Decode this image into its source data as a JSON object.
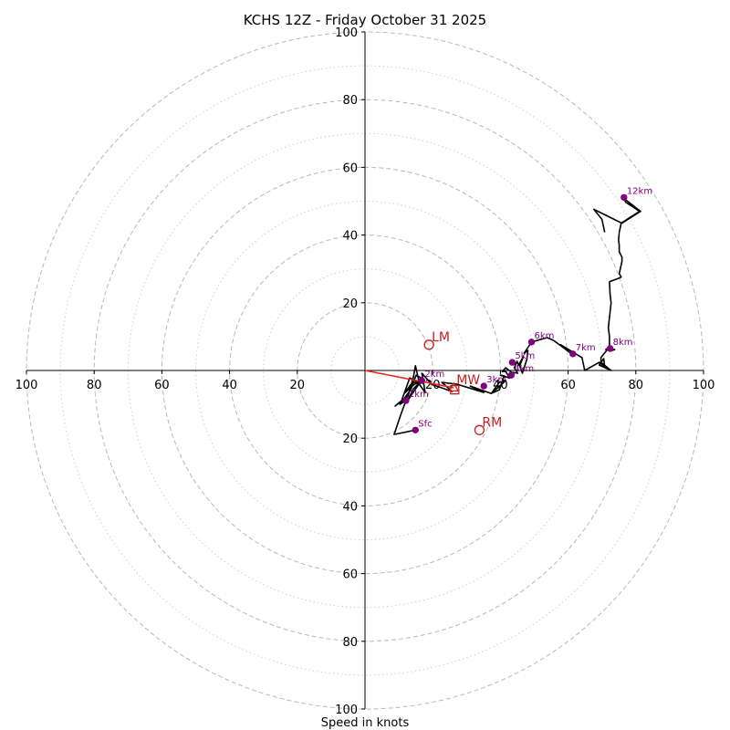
{
  "chart_data": {
    "type": "scatter",
    "subtype": "hodograph",
    "title": "KCHS 12Z - Friday October 31 2025",
    "xlabel": "Speed in knots",
    "ylabel": "",
    "xlim": [
      -100,
      100
    ],
    "ylim": [
      -100,
      100
    ],
    "rings": [
      20,
      40,
      60,
      80,
      100
    ],
    "minor_rings": [
      10,
      30,
      50,
      70,
      90
    ],
    "x_ticks": [
      {
        "value": -100,
        "label": "100"
      },
      {
        "value": -80,
        "label": "80"
      },
      {
        "value": -60,
        "label": "60"
      },
      {
        "value": -40,
        "label": "40"
      },
      {
        "value": -20,
        "label": "20"
      },
      {
        "value": 20,
        "label": "20"
      },
      {
        "value": 40,
        "label": "40"
      },
      {
        "value": 60,
        "label": "60"
      },
      {
        "value": 80,
        "label": "80"
      },
      {
        "value": 100,
        "label": "100"
      }
    ],
    "y_ticks": [
      {
        "value": 100,
        "label": "100"
      },
      {
        "value": 80,
        "label": "80"
      },
      {
        "value": 60,
        "label": "60"
      },
      {
        "value": 40,
        "label": "40"
      },
      {
        "value": 20,
        "label": "20"
      },
      {
        "value": -20,
        "label": "20"
      },
      {
        "value": -40,
        "label": "40"
      },
      {
        "value": -60,
        "label": "60"
      },
      {
        "value": -80,
        "label": "80"
      },
      {
        "value": -100,
        "label": "100"
      }
    ],
    "trace": [
      [
        14.9,
        -17.6
      ],
      [
        8.6,
        -18.9
      ],
      [
        10.5,
        -13.2
      ],
      [
        12.1,
        -8.9
      ],
      [
        10.3,
        -10.0
      ],
      [
        13.5,
        -5.7
      ],
      [
        15.1,
        -1.4
      ],
      [
        17.0,
        -2.4
      ],
      [
        12.4,
        -9.2
      ],
      [
        14.3,
        -5.4
      ],
      [
        16.8,
        -3.0
      ],
      [
        13.8,
        -3.8
      ],
      [
        11.6,
        -6.8
      ],
      [
        14.6,
        -4.1
      ],
      [
        15.9,
        -3.5
      ],
      [
        13.2,
        -2.2
      ],
      [
        10.8,
        -8.9
      ],
      [
        8.9,
        -10.5
      ],
      [
        12.7,
        -7.6
      ],
      [
        14.3,
        -1.9
      ],
      [
        14.9,
        1.4
      ],
      [
        16.2,
        -4.3
      ],
      [
        17.8,
        -6.5
      ],
      [
        16.8,
        -0.8
      ],
      [
        19.7,
        -4.1
      ],
      [
        25.7,
        -6.2
      ],
      [
        22.7,
        -3.5
      ],
      [
        27.3,
        -4.1
      ],
      [
        35.1,
        -6.5
      ],
      [
        31.1,
        -4.6
      ],
      [
        37.3,
        -6.8
      ],
      [
        41.6,
        -3.0
      ],
      [
        39.7,
        -3.5
      ],
      [
        37.3,
        -6.8
      ],
      [
        39.7,
        -5.7
      ],
      [
        41.1,
        -1.6
      ],
      [
        40.0,
        -1.4
      ],
      [
        42.7,
        -2.2
      ],
      [
        41.6,
        -0.3
      ],
      [
        40.5,
        -0.3
      ],
      [
        41.6,
        0.8
      ],
      [
        43.2,
        -0.5
      ],
      [
        45.1,
        -0.8
      ],
      [
        44.1,
        0.8
      ],
      [
        44.9,
        2.7
      ],
      [
        45.4,
        1.6
      ],
      [
        46.8,
        4.1
      ],
      [
        45.7,
        1.4
      ],
      [
        46.5,
        -0.8
      ],
      [
        47.8,
        3.2
      ],
      [
        48.1,
        5.9
      ],
      [
        47.0,
        5.1
      ],
      [
        49.2,
        8.4
      ],
      [
        53.8,
        9.7
      ],
      [
        55.7,
        8.9
      ],
      [
        60.8,
        5.1
      ],
      [
        57.8,
        7.6
      ],
      [
        64.1,
        3.8
      ],
      [
        64.9,
        0.0
      ],
      [
        69.2,
        2.4
      ],
      [
        70.8,
        1.1
      ],
      [
        70.5,
        3.5
      ],
      [
        69.2,
        1.6
      ],
      [
        72.7,
        0.0
      ],
      [
        69.7,
        2.4
      ],
      [
        69.7,
        3.8
      ],
      [
        71.6,
        6.2
      ],
      [
        73.8,
        6.2
      ],
      [
        72.4,
        5.7
      ],
      [
        72.7,
        6.5
      ],
      [
        71.1,
        6.2
      ],
      [
        72.2,
        6.8
      ],
      [
        72.2,
        8.4
      ],
      [
        72.2,
        10.0
      ],
      [
        71.9,
        12.7
      ],
      [
        72.7,
        20.0
      ],
      [
        72.4,
        22.4
      ],
      [
        72.2,
        26.2
      ],
      [
        75.1,
        27.3
      ],
      [
        75.7,
        27.6
      ],
      [
        75.1,
        28.6
      ],
      [
        75.9,
        32.2
      ],
      [
        75.9,
        33.5
      ],
      [
        75.1,
        35.1
      ],
      [
        75.1,
        37.0
      ],
      [
        74.9,
        38.4
      ],
      [
        75.1,
        40.8
      ],
      [
        75.7,
        43.5
      ],
      [
        81.1,
        47.0
      ],
      [
        77.0,
        49.7
      ],
      [
        76.5,
        50.8
      ],
      [
        81.4,
        47.0
      ],
      [
        75.9,
        43.5
      ],
      [
        67.6,
        47.6
      ],
      [
        70.0,
        44.6
      ],
      [
        70.8,
        40.8
      ]
    ],
    "height_points": [
      {
        "label": "Sfc",
        "u": 14.9,
        "v": -17.6
      },
      {
        "label": "1km",
        "u": 12.1,
        "v": -8.9
      },
      {
        "label": "2km",
        "u": 16.8,
        "v": -3.0
      },
      {
        "label": "3km",
        "u": 35.1,
        "v": -4.6
      },
      {
        "label": "4km",
        "u": 43.2,
        "v": -1.4
      },
      {
        "label": "5km",
        "u": 43.5,
        "v": 2.4
      },
      {
        "label": "6km",
        "u": 49.2,
        "v": 8.4
      },
      {
        "label": "7km",
        "u": 61.4,
        "v": 4.9
      },
      {
        "label": "8km",
        "u": 72.4,
        "v": 6.5
      },
      {
        "label": "12km",
        "u": 76.5,
        "v": 51.1
      }
    ],
    "markers": [
      {
        "label": "LM",
        "u": 18.9,
        "v": 7.6,
        "shape": "circle"
      },
      {
        "label": "RM",
        "u": 33.8,
        "v": -17.6,
        "shape": "circle"
      },
      {
        "label": "MW",
        "u": 26.2,
        "v": -5.1,
        "shape": "triangle"
      },
      {
        "label": "LS",
        "u": 26.5,
        "v": -5.7,
        "shape": "square"
      }
    ],
    "shear_vector": {
      "from": [
        0,
        0
      ],
      "to": [
        26.2,
        -5.1
      ]
    }
  }
}
